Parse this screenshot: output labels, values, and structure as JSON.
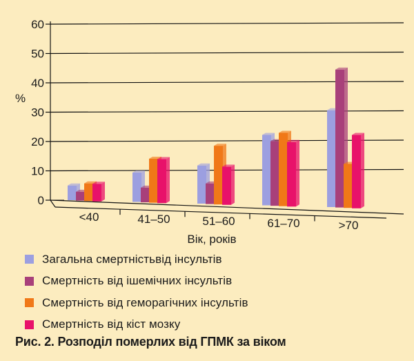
{
  "chart_data": {
    "type": "bar",
    "ylabel": "%",
    "xlabel": "Вік, років",
    "ylim": [
      0,
      60
    ],
    "yticks": [
      0,
      10,
      20,
      30,
      40,
      50,
      60
    ],
    "grid": true,
    "categories": [
      "<40",
      "41–50",
      "51–60",
      "61–70",
      ">70"
    ],
    "series": [
      {
        "name": "Загальна смертністьвід інсультів",
        "color": "#9c9fe0",
        "values": [
          5,
          10,
          13,
          24,
          33
        ]
      },
      {
        "name": "Смертність від ішемічних інсультів",
        "color": "#a8407a",
        "values": [
          3,
          5,
          7,
          22,
          47
        ]
      },
      {
        "name": "Смертність від геморагічних інсультів",
        "color": "#f07818",
        "values": [
          6,
          15,
          20,
          25,
          15
        ]
      },
      {
        "name": "Смертність від кіст мозку",
        "color": "#e8126a",
        "values": [
          6,
          15,
          13,
          22,
          25
        ]
      }
    ],
    "legend_position": "bottom"
  },
  "caption": "Рис. 2. Розподіл померлих від ГПМК за віком"
}
